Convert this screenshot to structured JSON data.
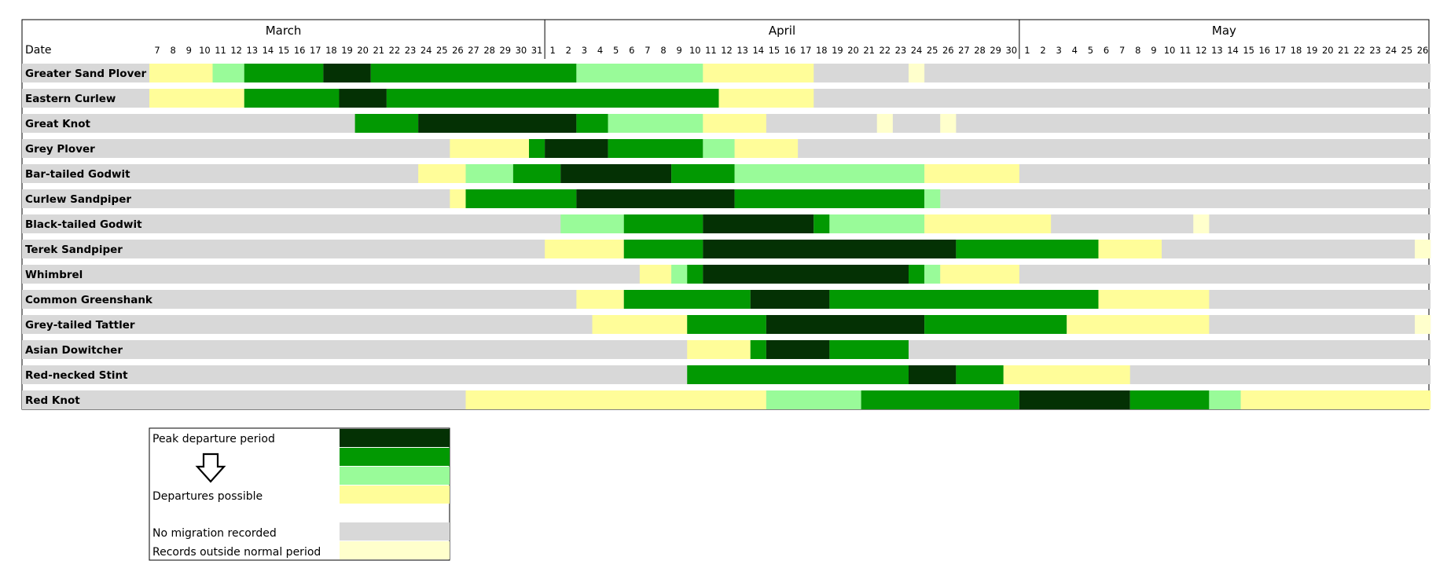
{
  "chart_data": {
    "type": "heatmap",
    "header_label": "Date",
    "months": [
      {
        "name": "March",
        "first_day": 7,
        "last_day": 31
      },
      {
        "name": "April",
        "first_day": 1,
        "last_day": 30
      },
      {
        "name": "May",
        "first_day": 1,
        "last_day": 26
      }
    ],
    "categories": [
      {
        "key": "peak",
        "label": "Peak departure period",
        "color": "#043104"
      },
      {
        "key": "high",
        "label": "",
        "color": "#029902"
      },
      {
        "key": "medium",
        "label": "",
        "color": "#99fb99"
      },
      {
        "key": "possible",
        "label": "Departures possible",
        "color": "#fffd99"
      },
      {
        "key": "none",
        "label": "No migration recorded",
        "color": "#d8d8d8"
      },
      {
        "key": "outside",
        "label": "Records outside normal period",
        "color": "#ffffcc"
      }
    ],
    "default_category": "none",
    "species": [
      {
        "name": "Greater Sand Plover",
        "segments": [
          {
            "from": "Mar 7",
            "to": "Mar 10",
            "category": "possible"
          },
          {
            "from": "Mar 11",
            "to": "Mar 12",
            "category": "medium"
          },
          {
            "from": "Mar 13",
            "to": "Mar 17",
            "category": "high"
          },
          {
            "from": "Mar 18",
            "to": "Mar 20",
            "category": "peak"
          },
          {
            "from": "Mar 21",
            "to": "Apr 2",
            "category": "high"
          },
          {
            "from": "Apr 3",
            "to": "Apr 10",
            "category": "medium"
          },
          {
            "from": "Apr 11",
            "to": "Apr 17",
            "category": "possible"
          },
          {
            "from": "Apr 24",
            "to": "Apr 24",
            "category": "outside"
          }
        ]
      },
      {
        "name": "Eastern Curlew",
        "segments": [
          {
            "from": "Mar 7",
            "to": "Mar 12",
            "category": "possible"
          },
          {
            "from": "Mar 13",
            "to": "Mar 18",
            "category": "high"
          },
          {
            "from": "Mar 19",
            "to": "Mar 21",
            "category": "peak"
          },
          {
            "from": "Mar 22",
            "to": "Apr 11",
            "category": "high"
          },
          {
            "from": "Apr 12",
            "to": "Apr 17",
            "category": "possible"
          }
        ]
      },
      {
        "name": "Great Knot",
        "segments": [
          {
            "from": "Mar 20",
            "to": "Mar 23",
            "category": "high"
          },
          {
            "from": "Mar 24",
            "to": "Apr 2",
            "category": "peak"
          },
          {
            "from": "Apr 3",
            "to": "Apr 4",
            "category": "high"
          },
          {
            "from": "Apr 5",
            "to": "Apr 10",
            "category": "medium"
          },
          {
            "from": "Apr 11",
            "to": "Apr 14",
            "category": "possible"
          },
          {
            "from": "Apr 22",
            "to": "Apr 22",
            "category": "outside"
          },
          {
            "from": "Apr 26",
            "to": "Apr 26",
            "category": "outside"
          }
        ]
      },
      {
        "name": "Grey Plover",
        "segments": [
          {
            "from": "Mar 26",
            "to": "Mar 30",
            "category": "possible"
          },
          {
            "from": "Mar 31",
            "to": "Mar 31",
            "category": "high"
          },
          {
            "from": "Apr 1",
            "to": "Apr 4",
            "category": "peak"
          },
          {
            "from": "Apr 5",
            "to": "Apr 10",
            "category": "high"
          },
          {
            "from": "Apr 11",
            "to": "Apr 12",
            "category": "medium"
          },
          {
            "from": "Apr 13",
            "to": "Apr 16",
            "category": "possible"
          }
        ]
      },
      {
        "name": "Bar-tailed Godwit",
        "segments": [
          {
            "from": "Mar 24",
            "to": "Mar 26",
            "category": "possible"
          },
          {
            "from": "Mar 27",
            "to": "Mar 29",
            "category": "medium"
          },
          {
            "from": "Mar 30",
            "to": "Apr 1",
            "category": "high"
          },
          {
            "from": "Apr 2",
            "to": "Apr 8",
            "category": "peak"
          },
          {
            "from": "Apr 9",
            "to": "Apr 12",
            "category": "high"
          },
          {
            "from": "Apr 13",
            "to": "Apr 24",
            "category": "medium"
          },
          {
            "from": "Apr 25",
            "to": "Apr 30",
            "category": "possible"
          }
        ]
      },
      {
        "name": "Curlew Sandpiper",
        "segments": [
          {
            "from": "Mar 26",
            "to": "Mar 26",
            "category": "possible"
          },
          {
            "from": "Mar 27",
            "to": "Apr 2",
            "category": "high"
          },
          {
            "from": "Apr 3",
            "to": "Apr 12",
            "category": "peak"
          },
          {
            "from": "Apr 13",
            "to": "Apr 24",
            "category": "high"
          },
          {
            "from": "Apr 25",
            "to": "Apr 25",
            "category": "medium"
          }
        ]
      },
      {
        "name": "Black-tailed Godwit",
        "segments": [
          {
            "from": "Apr 2",
            "to": "Apr 5",
            "category": "medium"
          },
          {
            "from": "Apr 6",
            "to": "Apr 10",
            "category": "high"
          },
          {
            "from": "Apr 11",
            "to": "Apr 17",
            "category": "peak"
          },
          {
            "from": "Apr 18",
            "to": "Apr 18",
            "category": "high"
          },
          {
            "from": "Apr 19",
            "to": "Apr 24",
            "category": "medium"
          },
          {
            "from": "Apr 25",
            "to": "May 2",
            "category": "possible"
          },
          {
            "from": "May 12",
            "to": "May 12",
            "category": "outside"
          }
        ]
      },
      {
        "name": "Terek Sandpiper",
        "segments": [
          {
            "from": "Apr 1",
            "to": "Apr 5",
            "category": "possible"
          },
          {
            "from": "Apr 6",
            "to": "Apr 10",
            "category": "high"
          },
          {
            "from": "Apr 11",
            "to": "Apr 26",
            "category": "peak"
          },
          {
            "from": "Apr 27",
            "to": "May 5",
            "category": "high"
          },
          {
            "from": "May 6",
            "to": "May 9",
            "category": "possible"
          },
          {
            "from": "May 26",
            "to": "May 26",
            "category": "outside"
          }
        ]
      },
      {
        "name": "Whimbrel",
        "segments": [
          {
            "from": "Apr 7",
            "to": "Apr 8",
            "category": "possible"
          },
          {
            "from": "Apr 9",
            "to": "Apr 9",
            "category": "medium"
          },
          {
            "from": "Apr 10",
            "to": "Apr 10",
            "category": "high"
          },
          {
            "from": "Apr 11",
            "to": "Apr 23",
            "category": "peak"
          },
          {
            "from": "Apr 24",
            "to": "Apr 24",
            "category": "high"
          },
          {
            "from": "Apr 25",
            "to": "Apr 25",
            "category": "medium"
          },
          {
            "from": "Apr 26",
            "to": "Apr 30",
            "category": "possible"
          }
        ]
      },
      {
        "name": "Common Greenshank",
        "segments": [
          {
            "from": "Apr 3",
            "to": "Apr 5",
            "category": "possible"
          },
          {
            "from": "Apr 6",
            "to": "Apr 13",
            "category": "high"
          },
          {
            "from": "Apr 14",
            "to": "Apr 18",
            "category": "peak"
          },
          {
            "from": "Apr 19",
            "to": "May 5",
            "category": "high"
          },
          {
            "from": "May 6",
            "to": "May 12",
            "category": "possible"
          }
        ]
      },
      {
        "name": "Grey-tailed Tattler",
        "segments": [
          {
            "from": "Apr 4",
            "to": "Apr 9",
            "category": "possible"
          },
          {
            "from": "Apr 10",
            "to": "Apr 14",
            "category": "high"
          },
          {
            "from": "Apr 15",
            "to": "Apr 24",
            "category": "peak"
          },
          {
            "from": "Apr 25",
            "to": "May 3",
            "category": "high"
          },
          {
            "from": "May 4",
            "to": "May 12",
            "category": "possible"
          },
          {
            "from": "May 26",
            "to": "May 26",
            "category": "outside"
          }
        ]
      },
      {
        "name": "Asian Dowitcher",
        "segments": [
          {
            "from": "Apr 10",
            "to": "Apr 13",
            "category": "possible"
          },
          {
            "from": "Apr 14",
            "to": "Apr 14",
            "category": "high"
          },
          {
            "from": "Apr 15",
            "to": "Apr 18",
            "category": "peak"
          },
          {
            "from": "Apr 19",
            "to": "Apr 23",
            "category": "high"
          }
        ]
      },
      {
        "name": "Red-necked Stint",
        "segments": [
          {
            "from": "Apr 10",
            "to": "Apr 23",
            "category": "high"
          },
          {
            "from": "Apr 24",
            "to": "Apr 26",
            "category": "peak"
          },
          {
            "from": "Apr 27",
            "to": "Apr 29",
            "category": "high"
          },
          {
            "from": "Apr 30",
            "to": "May 7",
            "category": "possible"
          }
        ]
      },
      {
        "name": "Red Knot",
        "segments": [
          {
            "from": "Mar 27",
            "to": "Apr 14",
            "category": "possible"
          },
          {
            "from": "Apr 15",
            "to": "Apr 20",
            "category": "medium"
          },
          {
            "from": "Apr 21",
            "to": "Apr 30",
            "category": "high"
          },
          {
            "from": "May 1",
            "to": "May 7",
            "category": "peak"
          },
          {
            "from": "May 8",
            "to": "May 12",
            "category": "high"
          },
          {
            "from": "May 13",
            "to": "May 14",
            "category": "medium"
          },
          {
            "from": "May 15",
            "to": "May 26",
            "category": "possible"
          }
        ]
      }
    ]
  }
}
